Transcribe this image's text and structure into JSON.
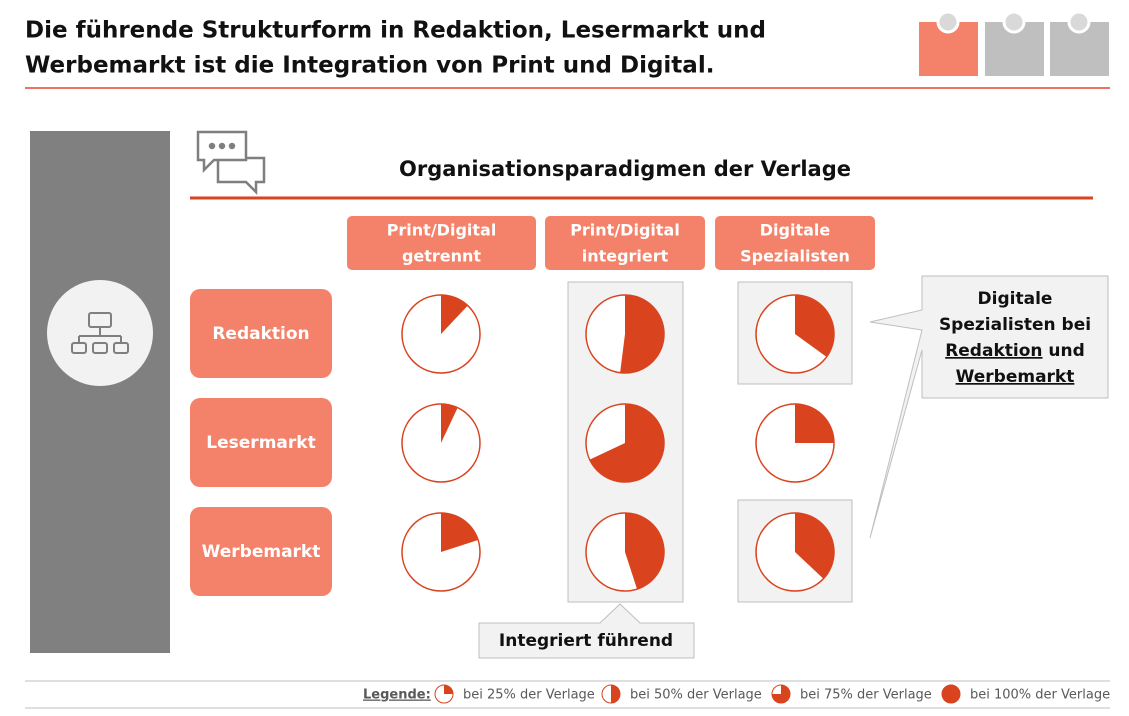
{
  "header": {
    "title": [
      "Die führende Strukturform in Redaktion, Lesermarkt und",
      "Werbemarkt ist die Integration von Print und Digital."
    ]
  },
  "section": {
    "title": "Organisationsparadigmen der Verlage"
  },
  "columns": [
    [
      "Print/Digital",
      "getrennt"
    ],
    [
      "Print/Digital",
      "integriert"
    ],
    [
      "Digitale",
      "Spezialisten"
    ]
  ],
  "rows": [
    "Redaktion",
    "Lesermarkt",
    "Werbemarkt"
  ],
  "values": [
    [
      12,
      52,
      35
    ],
    [
      7,
      68,
      25
    ],
    [
      20,
      45,
      37
    ]
  ],
  "callout": {
    "parts": [
      "Digitale",
      "Spezialisten bei",
      "Redaktion",
      "und",
      "Werbemarkt"
    ]
  },
  "bottom_callout": "Integriert führend",
  "legend": {
    "title": "Legende:",
    "items": [
      {
        "value": 25,
        "label": "bei 25% der Verlage"
      },
      {
        "value": 50,
        "label": "bei 50% der Verlage"
      },
      {
        "value": 75,
        "label": "bei 75% der Verlage"
      },
      {
        "value": 100,
        "label": "bei 100% der Verlage"
      }
    ]
  }
}
